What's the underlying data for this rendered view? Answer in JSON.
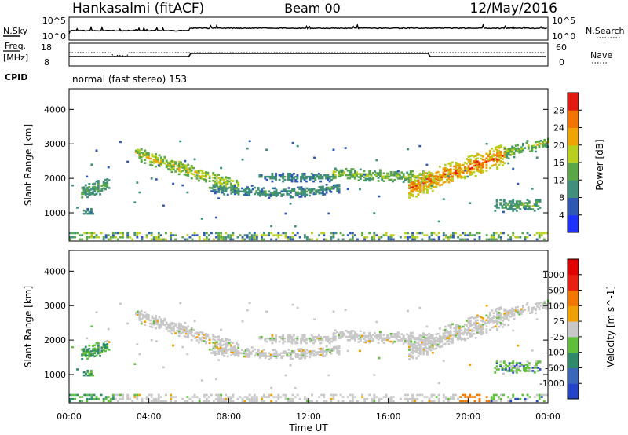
{
  "header": {
    "station": "Hankasalmi (fitACF)",
    "beam": "Beam 00",
    "date": "12/May/2016"
  },
  "status_panel": {
    "nsky_label": "N.Sky",
    "nsearch_label": "N.Search",
    "freq_label_line1": "Freq.",
    "freq_label_line2": "[MHz]",
    "nave_label": "Nave",
    "cpid_label": "CPID",
    "left_ticks_top": [
      "10^5",
      "10^0"
    ],
    "right_ticks_top": [
      "10^5",
      "10^0"
    ],
    "left_ticks_freq": [
      "18",
      "8"
    ],
    "right_ticks_nave": [
      "60",
      "0"
    ],
    "mode_text": "normal (fast stereo) 153"
  },
  "chart_data": [
    {
      "type": "heatmap",
      "name": "power",
      "ylabel": "Slant Range [km]",
      "xlabel": "",
      "xlim": [
        0,
        24
      ],
      "ylim": [
        180,
        4600
      ],
      "yticks": [
        "1000",
        "2000",
        "3000",
        "4000"
      ],
      "colorbar": {
        "label": "Power [dB]",
        "ticks": [
          "4",
          "8",
          "12",
          "16",
          "20",
          "24",
          "28"
        ],
        "colors": [
          "#1e32ff",
          "#2e58b4",
          "#3f8f7a",
          "#5aa845",
          "#b8cf1e",
          "#f0a400",
          "#f27300",
          "#e31a0f"
        ]
      }
    },
    {
      "type": "heatmap",
      "name": "velocity",
      "ylabel": "Velocity [m s^-1]",
      "ylabel_left": "Slant Range [km]",
      "xlabel": "Time UT",
      "xlim": [
        0,
        24
      ],
      "ylim": [
        180,
        4600
      ],
      "xticks": [
        "00:00",
        "04:00",
        "08:00",
        "12:00",
        "16:00",
        "20:00",
        "00:00"
      ],
      "yticks": [
        "1000",
        "2000",
        "3000",
        "4000"
      ],
      "colorbar": {
        "label": "Velocity [m s^-1]",
        "ticks": [
          "1000",
          "500",
          "100",
          "25",
          "-25",
          "-100",
          "-500",
          "-1000"
        ],
        "colors": [
          "#2545c8",
          "#3a66b8",
          "#2f8a6a",
          "#5fbf3a",
          "#c8c8c8",
          "#f0a000",
          "#f07800",
          "#e82010",
          "#e00000"
        ]
      }
    }
  ]
}
